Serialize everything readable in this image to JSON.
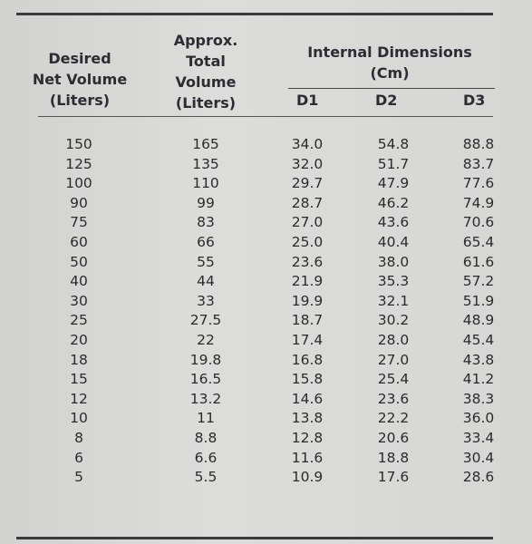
{
  "headers": {
    "desired": [
      "Desired",
      "Net Volume",
      "(Liters)"
    ],
    "approx": [
      "Approx.",
      "Total",
      "Volume",
      "(Liters)"
    ],
    "internal": [
      "Internal Dimensions",
      "(Cm)"
    ],
    "d1": "D1",
    "d2": "D2",
    "d3": "D3"
  },
  "rows": [
    [
      "150",
      "165",
      "34.0",
      "54.8",
      "88.8"
    ],
    [
      "125",
      "135",
      "32.0",
      "51.7",
      "83.7"
    ],
    [
      "100",
      "110",
      "29.7",
      "47.9",
      "77.6"
    ],
    [
      "90",
      "99",
      "28.7",
      "46.2",
      "74.9"
    ],
    [
      "75",
      "83",
      "27.0",
      "43.6",
      "70.6"
    ],
    [
      "60",
      "66",
      "25.0",
      "40.4",
      "65.4"
    ],
    [
      "50",
      "55",
      "23.6",
      "38.0",
      "61.6"
    ],
    [
      "40",
      "44",
      "21.9",
      "35.3",
      "57.2"
    ],
    [
      "30",
      "33",
      "19.9",
      "32.1",
      "51.9"
    ],
    [
      "25",
      "27.5",
      "18.7",
      "30.2",
      "48.9"
    ],
    [
      "20",
      "22",
      "17.4",
      "28.0",
      "45.4"
    ],
    [
      "18",
      "19.8",
      "16.8",
      "27.0",
      "43.8"
    ],
    [
      "15",
      "16.5",
      "15.8",
      "25.4",
      "41.2"
    ],
    [
      "12",
      "13.2",
      "14.6",
      "23.6",
      "38.3"
    ],
    [
      "10",
      "11",
      "13.8",
      "22.2",
      "36.0"
    ],
    [
      "8",
      "8.8",
      "12.8",
      "20.6",
      "33.4"
    ],
    [
      "6",
      "6.6",
      "11.6",
      "18.8",
      "30.4"
    ],
    [
      "5",
      "5.5",
      "10.9",
      "17.6",
      "28.6"
    ]
  ]
}
